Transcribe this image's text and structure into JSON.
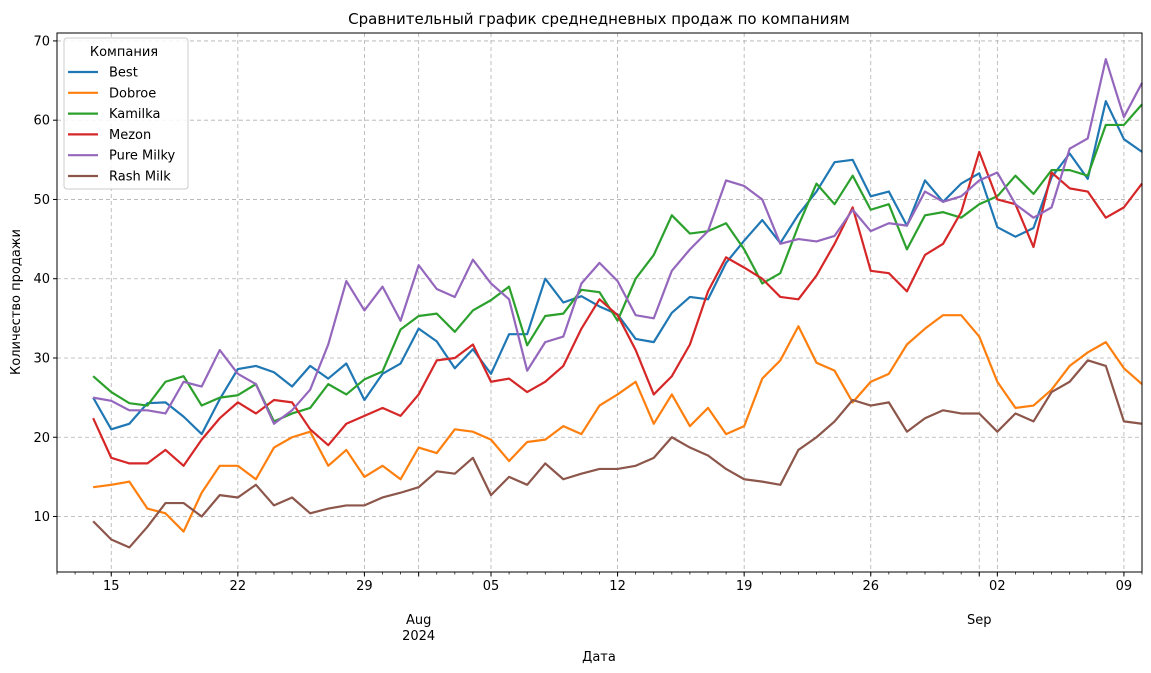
{
  "chart_data": {
    "type": "line",
    "title": "Сравнительный график среднедневных продаж по компаниям",
    "xlabel": "Дата",
    "ylabel": "Количество продажи",
    "x_start": "2024-07-12",
    "x_end": "2024-09-10",
    "ylim": [
      3,
      71
    ],
    "y_ticks": [
      10,
      20,
      30,
      40,
      50,
      60,
      70
    ],
    "grid": true,
    "legend_title": "Компания",
    "legend_position": "upper-left",
    "x_ticks": [
      {
        "date": "2024-07-15",
        "label": "15"
      },
      {
        "date": "2024-07-22",
        "label": "22"
      },
      {
        "date": "2024-07-29",
        "label": "29"
      },
      {
        "date": "2024-08-01",
        "label": "Aug",
        "label2": "2024"
      },
      {
        "date": "2024-08-05",
        "label": "05"
      },
      {
        "date": "2024-08-12",
        "label": "12"
      },
      {
        "date": "2024-08-19",
        "label": "19"
      },
      {
        "date": "2024-08-26",
        "label": "26"
      },
      {
        "date": "2024-09-01",
        "label": "Sep"
      },
      {
        "date": "2024-09-02",
        "label": "02"
      },
      {
        "date": "2024-09-09",
        "label": "09"
      }
    ],
    "series": [
      {
        "name": "Best",
        "color": "#1f77b4",
        "start": "2024-07-14",
        "values": [
          25,
          21,
          21.7,
          24.3,
          24.4,
          22.6,
          20.4,
          24.8,
          28.6,
          29,
          28.2,
          26.4,
          29,
          27.4,
          29.3,
          24.7,
          28,
          29.3,
          33.7,
          32.1,
          28.7,
          31.1,
          28,
          33,
          33,
          40,
          37,
          37.8,
          36.5,
          35.5,
          32.4,
          32,
          35.7,
          37.7,
          37.4,
          42,
          44.8,
          47.4,
          44.5,
          48.1,
          51,
          54.7,
          55,
          50.4,
          51,
          46.7,
          52.4,
          49.7,
          52,
          53.3,
          46.5,
          45.3,
          46.4,
          52.8,
          55.8,
          52.6,
          62.4,
          57.6,
          56
        ]
      },
      {
        "name": "Dobroe",
        "color": "#ff7f0e",
        "start": "2024-07-14",
        "values": [
          13.7,
          14,
          14.4,
          11,
          10.4,
          8.1,
          13,
          16.4,
          16.4,
          14.7,
          18.7,
          20,
          20.7,
          16.4,
          18.4,
          15,
          16.4,
          14.7,
          18.7,
          18,
          21,
          20.7,
          19.7,
          17,
          19.4,
          19.7,
          21.4,
          20.4,
          24,
          25.4,
          27,
          21.7,
          25.4,
          21.4,
          23.7,
          20.4,
          21.4,
          27.4,
          29.7,
          34,
          29.4,
          28.4,
          24.4,
          27,
          28,
          31.7,
          33.7,
          35.4,
          35.4,
          32.7,
          27,
          23.7,
          24,
          26,
          29,
          30.7,
          32,
          28.7,
          26.7
        ]
      },
      {
        "name": "Kamilka",
        "color": "#2ca02c",
        "start": "2024-07-14",
        "values": [
          27.7,
          25.7,
          24.3,
          24,
          27,
          27.7,
          24,
          25,
          25.3,
          26.7,
          22,
          23,
          23.7,
          26.7,
          25.4,
          27.3,
          28.3,
          33.6,
          35.3,
          35.6,
          33.3,
          36,
          37.3,
          39,
          31.6,
          35.3,
          35.6,
          38.6,
          38.3,
          34.7,
          40,
          43,
          48,
          45.7,
          46,
          47,
          43.7,
          39.4,
          40.7,
          46.7,
          52,
          49.4,
          53,
          48.7,
          49.4,
          43.7,
          48,
          48.4,
          47.7,
          49.4,
          50.4,
          53,
          50.7,
          53.7,
          53.7,
          53,
          59.4,
          59.4,
          62
        ]
      },
      {
        "name": "Mezon",
        "color": "#d62728",
        "start": "2024-07-14",
        "values": [
          22.4,
          17.4,
          16.7,
          16.7,
          18.4,
          16.4,
          19.7,
          22.4,
          24.4,
          23,
          24.7,
          24.4,
          21,
          19,
          21.7,
          22.7,
          23.7,
          22.7,
          25.4,
          29.7,
          30,
          31.7,
          27,
          27.4,
          25.7,
          27,
          29,
          33.7,
          37.4,
          35.4,
          31,
          25.4,
          27.7,
          31.7,
          38.4,
          42.7,
          41.4,
          40,
          37.7,
          37.4,
          40.4,
          44.4,
          49,
          41,
          40.7,
          38.4,
          43,
          44.4,
          48.4,
          56,
          50,
          49.4,
          44,
          53.4,
          51.4,
          51,
          47.7,
          49,
          52
        ]
      },
      {
        "name": "Pure Milky",
        "color": "#9467bd",
        "start": "2024-07-14",
        "values": [
          25,
          24.6,
          23.4,
          23.4,
          23,
          27,
          26.4,
          31,
          28,
          26.7,
          21.7,
          23.4,
          26,
          31.7,
          39.7,
          36,
          39,
          34.7,
          41.7,
          38.7,
          37.7,
          42.4,
          39.4,
          37.4,
          28.4,
          32,
          32.7,
          39.4,
          42,
          39.7,
          35.4,
          35,
          41,
          43.7,
          46,
          52.4,
          51.7,
          50,
          44.4,
          45,
          44.7,
          45.4,
          48.7,
          46,
          47,
          46.7,
          51,
          49.7,
          50.4,
          52.4,
          53.4,
          49.4,
          47.7,
          49,
          56.4,
          57.7,
          67.7,
          60.4,
          64.7
        ]
      },
      {
        "name": "Rash Milk",
        "color": "#8c564b",
        "start": "2024-07-14",
        "values": [
          9.4,
          7.1,
          6.1,
          8.7,
          11.7,
          11.7,
          10,
          12.7,
          12.4,
          14,
          11.4,
          12.4,
          10.4,
          11,
          11.4,
          11.4,
          12.4,
          13,
          13.7,
          15.7,
          15.4,
          17.4,
          12.7,
          15,
          14,
          16.7,
          14.7,
          15.4,
          16,
          16,
          16.4,
          17.4,
          20,
          18.7,
          17.7,
          16,
          14.7,
          14.4,
          14,
          18.4,
          20,
          22,
          24.7,
          24,
          24.4,
          20.7,
          22.4,
          23.4,
          23,
          23,
          20.7,
          23,
          22,
          25.7,
          27,
          29.7,
          29,
          22,
          21.7
        ]
      }
    ]
  }
}
